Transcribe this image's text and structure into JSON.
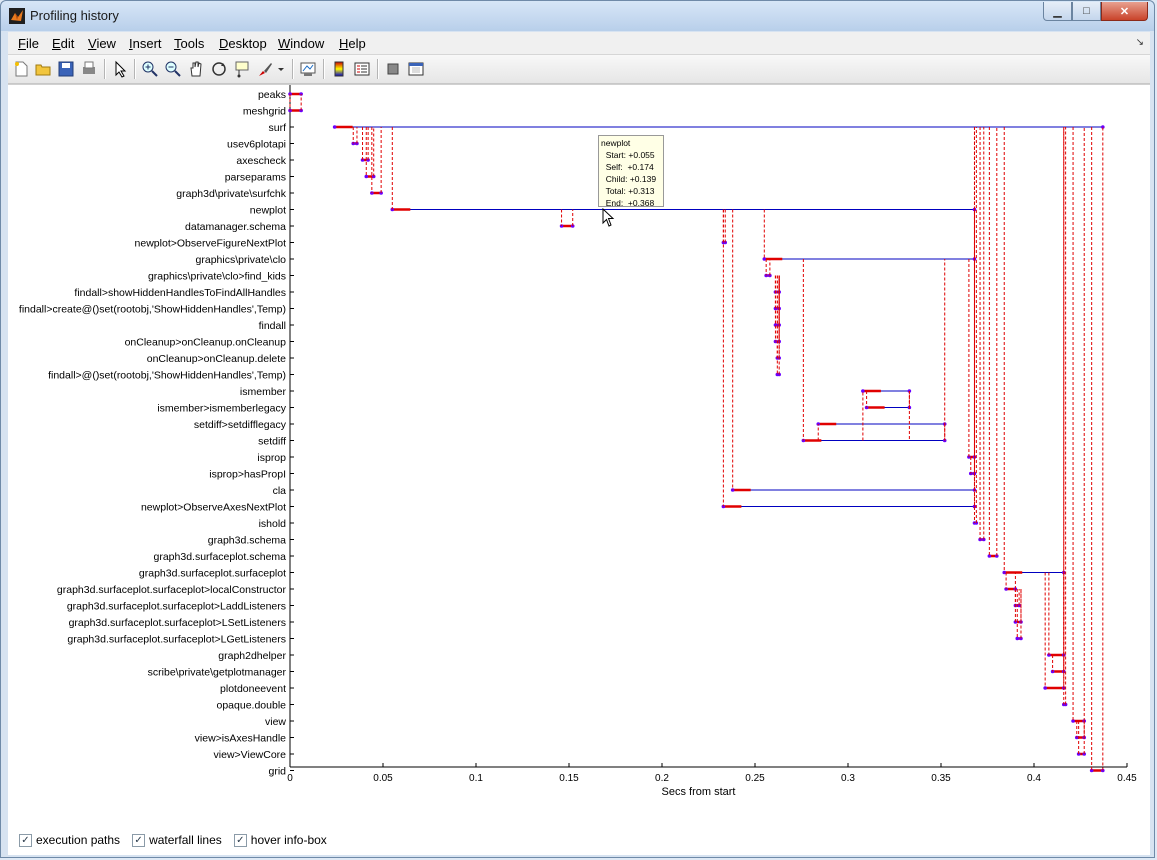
{
  "window": {
    "title": "Profiling history"
  },
  "menubar": {
    "items": [
      {
        "label": "File",
        "key": "F",
        "rest": "ile"
      },
      {
        "label": "Edit",
        "key": "E",
        "rest": "dit"
      },
      {
        "label": "View",
        "key": "V",
        "rest": "iew"
      },
      {
        "label": "Insert",
        "key": "I",
        "rest": "nsert"
      },
      {
        "label": "Tools",
        "key": "T",
        "rest": "ools"
      },
      {
        "label": "Desktop",
        "key": "D",
        "rest": "esktop"
      },
      {
        "label": "Window",
        "key": "W",
        "rest": "indow"
      },
      {
        "label": "Help",
        "key": "H",
        "rest": "elp"
      }
    ]
  },
  "toolbar": {
    "icons": [
      "new-figure-icon",
      "open-file-icon",
      "save-icon",
      "print-icon",
      "edit-plot-icon",
      "zoom-in-icon",
      "zoom-out-icon",
      "pan-icon",
      "rotate-3d-icon",
      "data-cursor-icon",
      "brush-icon",
      "brush-dropdown-icon",
      "link-plot-icon",
      "colorbar-icon",
      "legend-icon",
      "hide-plot-tools-icon",
      "show-plot-tools-icon"
    ]
  },
  "chart_data": {
    "type": "timeline",
    "xlabel": "Secs from start",
    "xlim": [
      0,
      0.45
    ],
    "xticks": [
      "0",
      "0.05",
      "0.1",
      "0.15",
      "0.2",
      "0.25",
      "0.3",
      "0.35",
      "0.4",
      "0.45"
    ],
    "functions": [
      "peaks",
      "meshgrid",
      "surf",
      "usev6plotapi",
      "axescheck",
      "parseparams",
      "graph3d\\private\\surfchk",
      "newplot",
      "datamanager.schema",
      "newplot>ObserveFigureNextPlot",
      "graphics\\private\\clo",
      "graphics\\private\\clo>find_kids",
      "findall>showHiddenHandlesToFindAllHandles",
      "findall>create@()set(rootobj,'ShowHiddenHandles',Temp)",
      "findall",
      "onCleanup>onCleanup.onCleanup",
      "onCleanup>onCleanup.delete",
      "findall>@()set(rootobj,'ShowHiddenHandles',Temp)",
      "ismember",
      "ismember>ismemberlegacy",
      "setdiff>setdifflegacy",
      "setdiff",
      "isprop",
      "isprop>hasPropI",
      "cla",
      "newplot>ObserveAxesNextPlot",
      "ishold",
      "graph3d.schema",
      "graph3d.surfaceplot.schema",
      "graph3d.surfaceplot.surfaceplot",
      "graph3d.surfaceplot.surfaceplot>localConstructor",
      "graph3d.surfaceplot.surfaceplot>LaddListeners",
      "graph3d.surfaceplot.surfaceplot>LSetListeners",
      "graph3d.surfaceplot.surfaceplot>LGetListeners",
      "graph2dhelper",
      "scribe\\private\\getplotmanager",
      "plotdoneevent",
      "opaque.double",
      "view",
      "view>isAxesHandle",
      "view>ViewCore",
      "grid"
    ],
    "spans": [
      {
        "fn": 0,
        "start": 0.0,
        "end": 0.006
      },
      {
        "fn": 1,
        "start": 0.0,
        "end": 0.006
      },
      {
        "fn": 2,
        "start": 0.024,
        "end": 0.437
      },
      {
        "fn": 3,
        "start": 0.034,
        "end": 0.036
      },
      {
        "fn": 4,
        "start": 0.039,
        "end": 0.042
      },
      {
        "fn": 5,
        "start": 0.041,
        "end": 0.045
      },
      {
        "fn": 6,
        "start": 0.044,
        "end": 0.049
      },
      {
        "fn": 7,
        "start": 0.055,
        "end": 0.368
      },
      {
        "fn": 8,
        "start": 0.146,
        "end": 0.152
      },
      {
        "fn": 9,
        "start": 0.233,
        "end": 0.234
      },
      {
        "fn": 10,
        "start": 0.255,
        "end": 0.368
      },
      {
        "fn": 11,
        "start": 0.256,
        "end": 0.258
      },
      {
        "fn": 12,
        "start": 0.261,
        "end": 0.263
      },
      {
        "fn": 13,
        "start": 0.261,
        "end": 0.263
      },
      {
        "fn": 14,
        "start": 0.261,
        "end": 0.263
      },
      {
        "fn": 15,
        "start": 0.261,
        "end": 0.263
      },
      {
        "fn": 16,
        "start": 0.262,
        "end": 0.263
      },
      {
        "fn": 17,
        "start": 0.262,
        "end": 0.263
      },
      {
        "fn": 18,
        "start": 0.308,
        "end": 0.333
      },
      {
        "fn": 19,
        "start": 0.31,
        "end": 0.333
      },
      {
        "fn": 20,
        "start": 0.284,
        "end": 0.352
      },
      {
        "fn": 21,
        "start": 0.276,
        "end": 0.352
      },
      {
        "fn": 22,
        "start": 0.365,
        "end": 0.368
      },
      {
        "fn": 23,
        "start": 0.366,
        "end": 0.368
      },
      {
        "fn": 24,
        "start": 0.238,
        "end": 0.368
      },
      {
        "fn": 25,
        "start": 0.233,
        "end": 0.368
      },
      {
        "fn": 26,
        "start": 0.368,
        "end": 0.369
      },
      {
        "fn": 27,
        "start": 0.371,
        "end": 0.373
      },
      {
        "fn": 28,
        "start": 0.376,
        "end": 0.38
      },
      {
        "fn": 29,
        "start": 0.384,
        "end": 0.416
      },
      {
        "fn": 30,
        "start": 0.385,
        "end": 0.39
      },
      {
        "fn": 31,
        "start": 0.39,
        "end": 0.392
      },
      {
        "fn": 32,
        "start": 0.39,
        "end": 0.393
      },
      {
        "fn": 33,
        "start": 0.391,
        "end": 0.393
      },
      {
        "fn": 34,
        "start": 0.408,
        "end": 0.416
      },
      {
        "fn": 35,
        "start": 0.41,
        "end": 0.416
      },
      {
        "fn": 36,
        "start": 0.406,
        "end": 0.416
      },
      {
        "fn": 37,
        "start": 0.416,
        "end": 0.417
      },
      {
        "fn": 38,
        "start": 0.421,
        "end": 0.427
      },
      {
        "fn": 39,
        "start": 0.423,
        "end": 0.427
      },
      {
        "fn": 40,
        "start": 0.424,
        "end": 0.427
      },
      {
        "fn": 41,
        "start": 0.431,
        "end": 0.437
      }
    ]
  },
  "infobox": {
    "title": "newplot",
    "start": "  Start: +0.055",
    "self": "  Self:  +0.174",
    "child": "  Child: +0.139",
    "total": "  Total: +0.313",
    "end": "  End:  +0.368"
  },
  "options": {
    "execution_paths": "execution paths",
    "waterfall_lines": "waterfall lines",
    "hover_info_box": "hover info-box"
  },
  "colors": {
    "self_time": "#e00000",
    "child_span": "#0000c0",
    "waterfall": "#e00000",
    "marker": "#6a00ff"
  }
}
